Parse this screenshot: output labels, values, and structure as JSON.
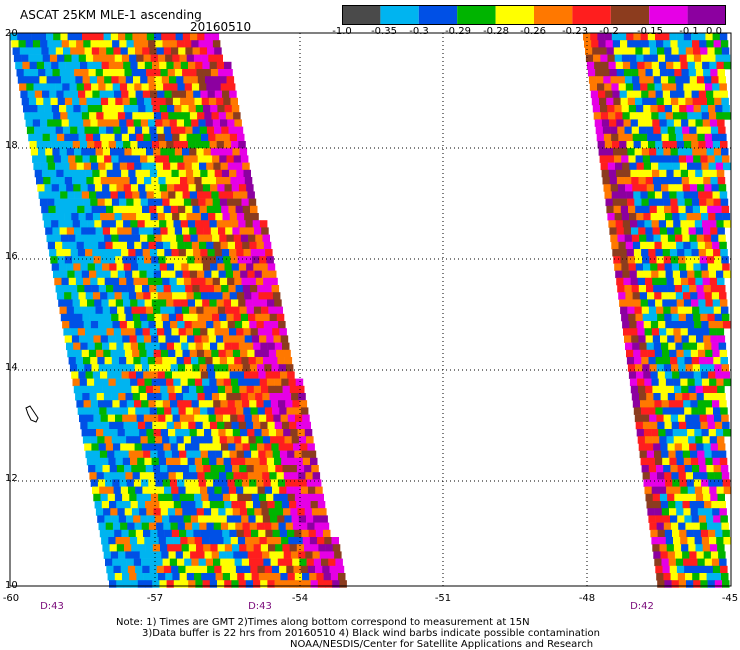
{
  "title": "ASCAT 25KM MLE-1 ascending",
  "date": "20160510",
  "colorbar": {
    "colors": [
      "#4a4a4a",
      "#00b4f0",
      "#0050e6",
      "#00b400",
      "#ffff00",
      "#ff7800",
      "#ff1e1e",
      "#8c3c1e",
      "#e600e6",
      "#8c00a0"
    ],
    "labels": [
      "-1.0",
      "-0.35",
      "-0.3",
      "-0.29",
      "-0.28",
      "-0.26",
      "-0.23",
      "-0.2",
      "-0.15",
      "-0.1",
      "0.0"
    ]
  },
  "map": {
    "lon_range": [
      -60,
      -45
    ],
    "lat_range": [
      10,
      20
    ],
    "lat_labels": [
      "20",
      "18",
      "16",
      "14",
      "12",
      "10"
    ],
    "lon_labels": [
      "-60",
      "-57",
      "-54",
      "-51",
      "-48",
      "-45"
    ],
    "pass_times": [
      "D:43",
      "D:43",
      "D:42"
    ]
  },
  "notes": {
    "line1": "Note: 1) Times are GMT 2)Times along bottom correspond to measurement at 15N",
    "line2": "3)Data buffer is 22 hrs from 20160510 4) Black wind barbs indicate possible contamination",
    "line3": "NOAA/NESDIS/Center for Satellite Applications and Research"
  }
}
